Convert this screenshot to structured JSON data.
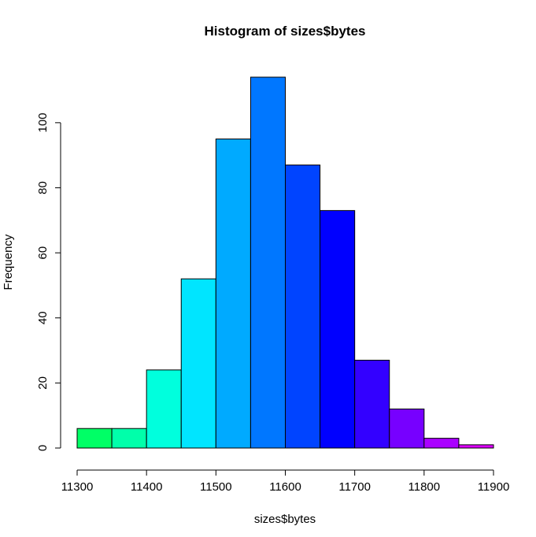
{
  "chart_data": {
    "type": "bar",
    "title": "Histogram of sizes$bytes",
    "xlabel": "sizes$bytes",
    "ylabel": "Frequency",
    "bin_edges": [
      11300,
      11350,
      11400,
      11450,
      11500,
      11550,
      11600,
      11650,
      11700,
      11750,
      11800,
      11850,
      11900
    ],
    "values": [
      6,
      6,
      24,
      52,
      95,
      114,
      87,
      73,
      27,
      12,
      3,
      1
    ],
    "colors": [
      "#00FF66",
      "#00FFAA",
      "#00FFDD",
      "#00E5FF",
      "#00AAFF",
      "#0077FF",
      "#0044FF",
      "#0000FF",
      "#3300FF",
      "#7700FF",
      "#AA00FF",
      "#DD00FF"
    ],
    "xlim": [
      11300,
      11900
    ],
    "ylim": [
      0,
      114
    ],
    "x_ticks": [
      11300,
      11400,
      11500,
      11600,
      11700,
      11800,
      11900
    ],
    "y_ticks": [
      0,
      20,
      40,
      60,
      80,
      100
    ],
    "grid": false,
    "legend": "none"
  }
}
